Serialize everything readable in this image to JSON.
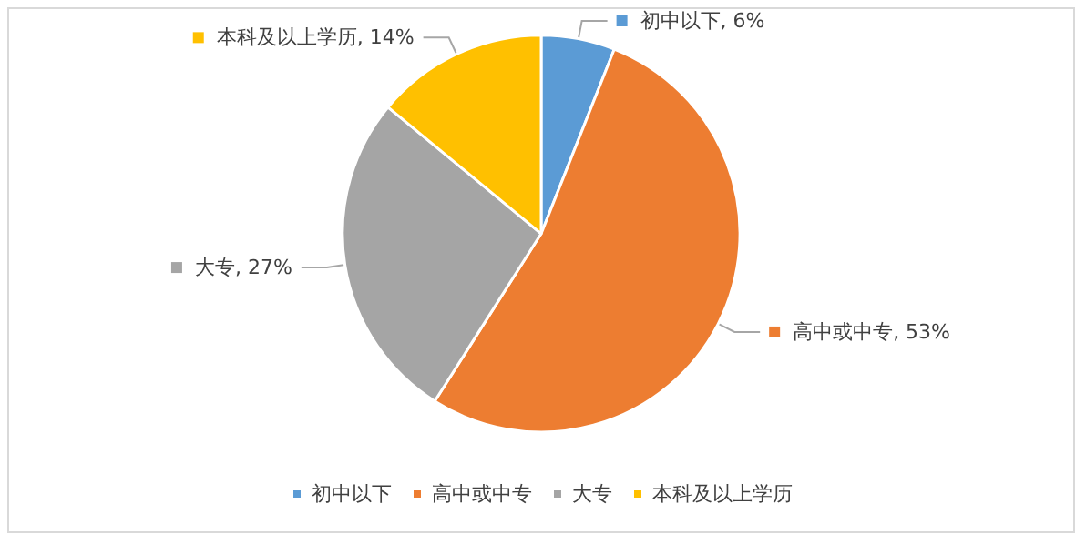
{
  "chart_data": {
    "type": "pie",
    "categories": [
      "初中以下",
      "高中或中专",
      "大专",
      "本科及以上学历"
    ],
    "values": [
      6,
      53,
      27,
      14
    ],
    "colors": [
      "#5b9bd5",
      "#ed7d31",
      "#a5a5a5",
      "#ffc000"
    ],
    "value_labels": [
      ", 6%",
      ", 53%",
      ", 27%",
      ", 14%"
    ],
    "legend": "bottom"
  }
}
